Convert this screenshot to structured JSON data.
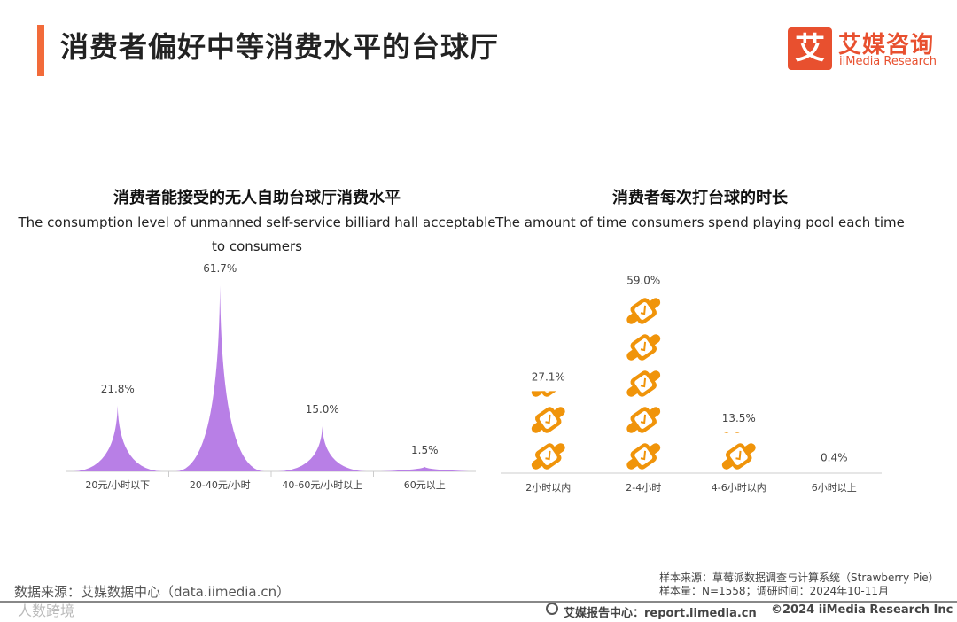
{
  "page": {
    "title": "消费者偏好中等消费水平的台球厅",
    "brand_colors": {
      "accent": "#f26b3a",
      "purple": "#b87fe6",
      "orange": "#f0940a"
    }
  },
  "logo": {
    "mark": "艾",
    "name_cn": "艾媒咨询",
    "name_en": "iiMedia Research"
  },
  "chart_data": [
    {
      "type": "bar",
      "marker": "spike",
      "title": "消费者能接受的无人自助台球厅消费水平",
      "subtitle_lines": [
        "The consumption level of unmanned self-service billiard hall acceptable",
        "to consumers"
      ],
      "categories": [
        "20元/小时以下",
        "20-40元/小时",
        "40-60元/小时以上",
        "60元以上"
      ],
      "values": [
        21.8,
        61.7,
        15.0,
        1.5
      ],
      "value_labels": [
        "21.8%",
        "61.7%",
        "15.0%",
        "1.5%"
      ],
      "unit": "%",
      "ylim": [
        0,
        70
      ],
      "color": "#b87fe6"
    },
    {
      "type": "bar",
      "marker": "watch-pictogram",
      "title": "消费者每次打台球的时长",
      "subtitle_lines": [
        "The amount of time consumers spend playing pool each time"
      ],
      "categories": [
        "2小时以内",
        "2-4小时",
        "4-6小时以内",
        "6小时以上"
      ],
      "values": [
        27.1,
        59.0,
        13.5,
        0.4
      ],
      "value_labels": [
        "27.1%",
        "59.0%",
        "13.5%",
        "0.4%"
      ],
      "unit": "%",
      "ylim": [
        0,
        60
      ],
      "color": "#f0940a"
    }
  ],
  "source": {
    "left": "数据来源：艾媒数据中心（data.iimedia.cn）",
    "right_line1": "样本来源：草莓派数据调查与计算系统（Strawberry Pie）",
    "right_line2": "样本量：N=1558；调研时间：2024年10-11月"
  },
  "footer": {
    "left": "人数跨境",
    "center": "艾媒报告中心：report.iimedia.cn",
    "right": "©2024  iiMedia Research  Inc"
  }
}
